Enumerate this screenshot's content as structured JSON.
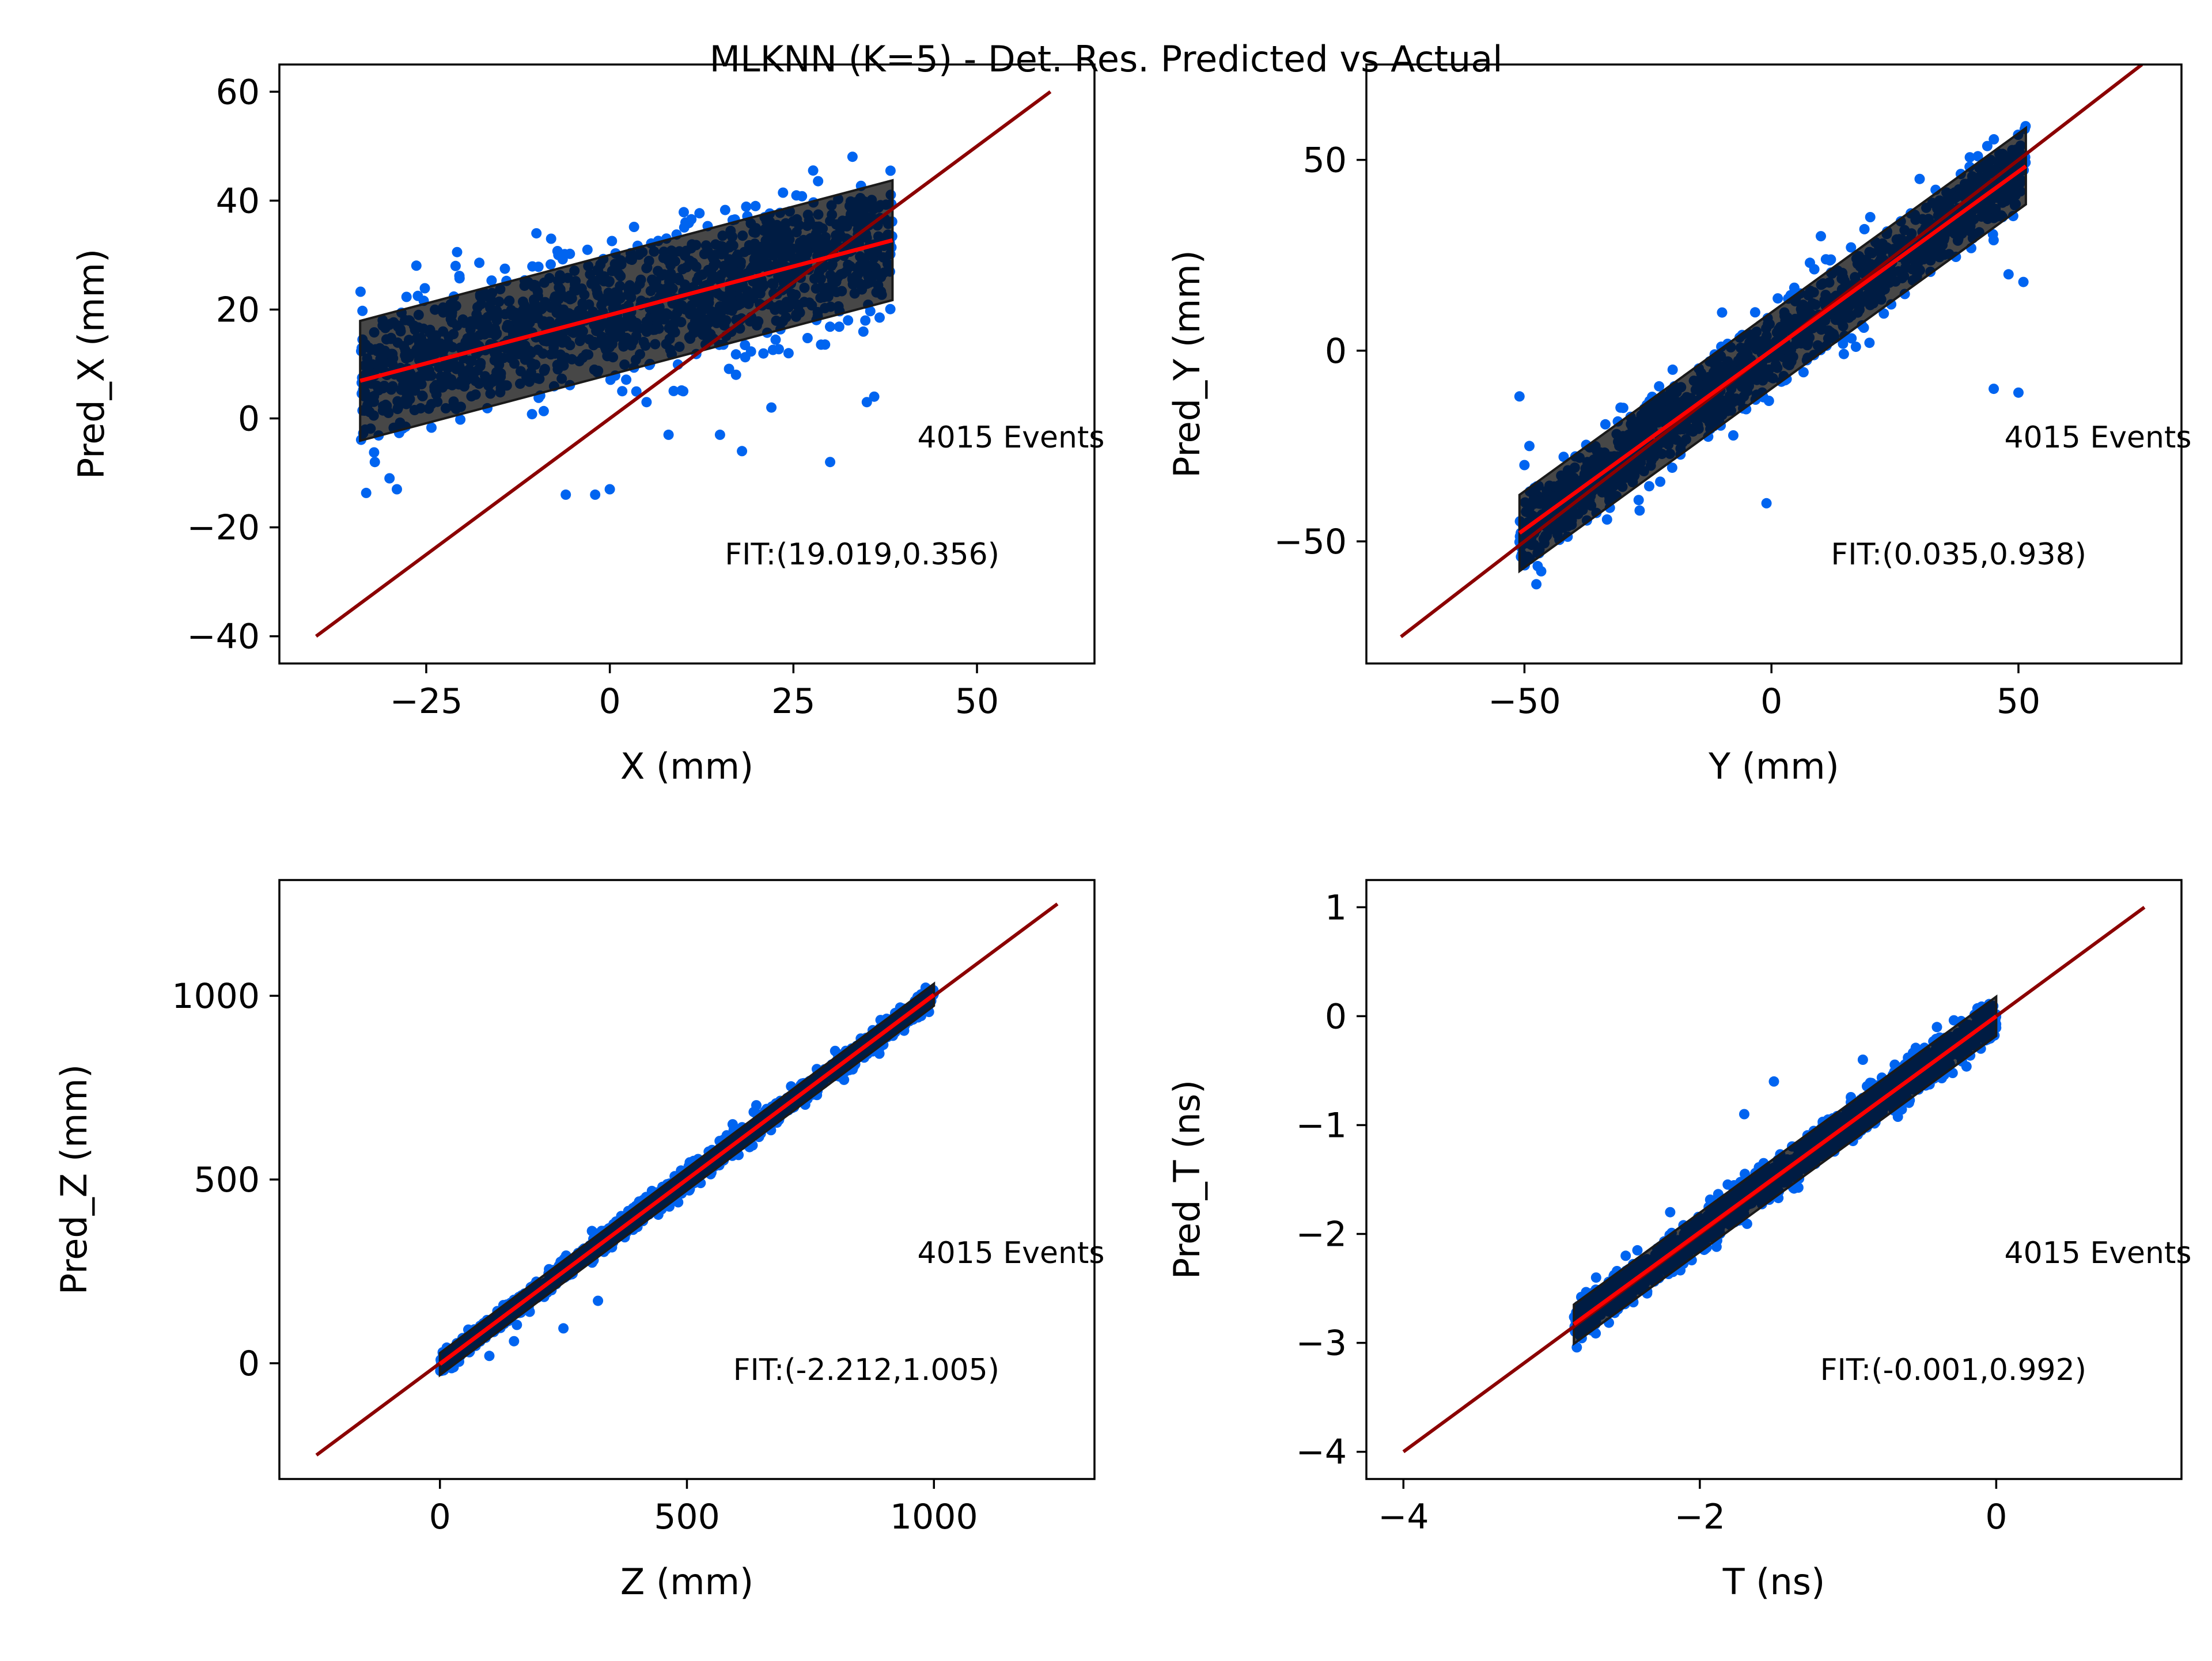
{
  "title": "MLKNN (K=5) - Det. Res. Predicted vs Actual",
  "colors": {
    "scatter": "#0064f0",
    "band_fill": "#000000",
    "band_edge": "#1a1a1a",
    "identity_line": "#8b0000",
    "fit_line": "#ff0000"
  },
  "chart_data": [
    {
      "type": "scatter",
      "xlabel": "X (mm)",
      "ylabel": "Pred_X (mm)",
      "xlim": [
        -45,
        66
      ],
      "ylim": [
        -45,
        65
      ],
      "xticks": [
        -25,
        0,
        25,
        50
      ],
      "xtick_labels": [
        "−25",
        "0",
        "25",
        "50"
      ],
      "yticks": [
        -40,
        -20,
        0,
        20,
        40,
        60
      ],
      "ytick_labels": [
        "−40",
        "−20",
        "0",
        "20",
        "40",
        "60"
      ],
      "events_label": "4015 Events",
      "fit_label": "FIT:(19.019,0.356)",
      "fit": {
        "intercept": 19.019,
        "slope": 0.356
      },
      "identity_range": [
        -40,
        60
      ],
      "data_range": [
        -34,
        38.5
      ],
      "band_halfwidth": 11,
      "spread": 6,
      "outliers": [
        [
          -30,
          -11
        ],
        [
          -32,
          -8
        ],
        [
          -29,
          -13
        ],
        [
          -6,
          -14
        ],
        [
          -2,
          -14
        ],
        [
          0,
          -13
        ],
        [
          18,
          -6
        ],
        [
          30,
          -8
        ],
        [
          22,
          2
        ],
        [
          15,
          -3
        ],
        [
          8,
          -3
        ],
        [
          35,
          3
        ],
        [
          36,
          4
        ],
        [
          10,
          5
        ],
        [
          5,
          3
        ],
        [
          -10,
          34
        ],
        [
          -8,
          33
        ],
        [
          -21,
          28
        ]
      ]
    },
    {
      "type": "scatter",
      "xlabel": "Y (mm)",
      "ylabel": "Pred_Y (mm)",
      "xlim": [
        -82,
        83
      ],
      "ylim": [
        -82,
        75
      ],
      "xticks": [
        -50,
        0,
        50
      ],
      "xtick_labels": [
        "−50",
        "0",
        "50"
      ],
      "yticks": [
        -50,
        0,
        50
      ],
      "ytick_labels": [
        "−50",
        "0",
        "50"
      ],
      "events_label": "4015 Events",
      "fit_label": "FIT:(0.035,0.938)",
      "fit": {
        "intercept": 0.035,
        "slope": 0.938
      },
      "identity_range": [
        -75,
        75
      ],
      "data_range": [
        -51,
        51.5
      ],
      "band_halfwidth": 10,
      "spread": 5,
      "outliers": [
        [
          -51,
          -12
        ],
        [
          -49,
          -25
        ],
        [
          -50,
          -30
        ],
        [
          -1,
          -40
        ],
        [
          45,
          -10
        ],
        [
          50,
          -11
        ],
        [
          48,
          20
        ],
        [
          51,
          18
        ],
        [
          -10,
          10
        ],
        [
          10,
          30
        ],
        [
          20,
          35
        ],
        [
          30,
          45
        ],
        [
          -30,
          -15
        ],
        [
          -20,
          -5
        ]
      ]
    },
    {
      "type": "scatter",
      "xlabel": "Z (mm)",
      "ylabel": "Pred_Z (mm)",
      "xlim": [
        -325,
        1325
      ],
      "ylim": [
        -315,
        1315
      ],
      "xticks": [
        0,
        500,
        1000
      ],
      "xtick_labels": [
        "0",
        "500",
        "1000"
      ],
      "yticks": [
        0,
        500,
        1000
      ],
      "ytick_labels": [
        "0",
        "500",
        "1000"
      ],
      "events_label": "4015 Events",
      "fit_label": "FIT:(-2.212,1.005)",
      "fit": {
        "intercept": -2.212,
        "slope": 1.005
      },
      "identity_range": [
        -250,
        1250
      ],
      "data_range": [
        0,
        1000
      ],
      "band_halfwidth": 30,
      "spread": 16,
      "outliers": [
        [
          250,
          95
        ],
        [
          320,
          170
        ],
        [
          640,
          680
        ],
        [
          800,
          850
        ],
        [
          100,
          20
        ],
        [
          150,
          60
        ]
      ]
    },
    {
      "type": "scatter",
      "xlabel": "T (ns)",
      "ylabel": "Pred_T (ns)",
      "xlim": [
        -4.25,
        1.25
      ],
      "ylim": [
        -4.25,
        1.25
      ],
      "xticks": [
        -4,
        -2,
        0
      ],
      "xtick_labels": [
        "−4",
        "−2",
        "0"
      ],
      "yticks": [
        -4,
        -3,
        -2,
        -1,
        0,
        1
      ],
      "ytick_labels": [
        "−4",
        "−3",
        "−2",
        "−1",
        "0",
        "1"
      ],
      "events_label": "4015 Events",
      "fit_label": "FIT:(-0.001,0.992)",
      "fit": {
        "intercept": -0.001,
        "slope": 0.992
      },
      "identity_range": [
        -4,
        1
      ],
      "data_range": [
        -2.85,
        0
      ],
      "band_halfwidth": 0.18,
      "spread": 0.09,
      "outliers": [
        [
          -1.5,
          -0.6
        ],
        [
          -1.7,
          -0.9
        ],
        [
          -0.4,
          -0.1
        ],
        [
          -2.7,
          -2.4
        ],
        [
          -2.5,
          -2.2
        ],
        [
          -0.9,
          -0.4
        ],
        [
          -2.2,
          -1.8
        ]
      ]
    }
  ]
}
